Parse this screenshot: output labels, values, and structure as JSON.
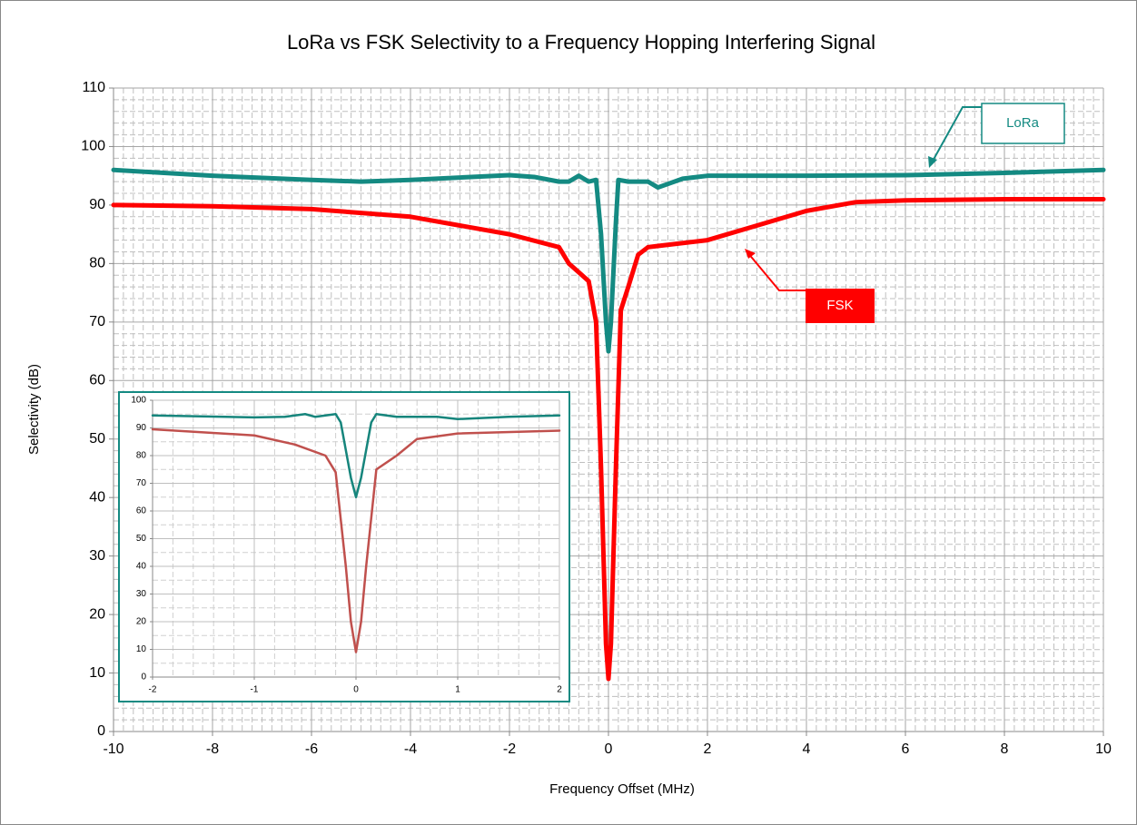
{
  "chart_data": [
    {
      "type": "line",
      "title": "LoRa vs FSK Selectivity to a Frequency Hopping Interfering Signal",
      "x_label": "Frequency Offset (MHz)",
      "y_label": "Selectivity (dB)",
      "xlim": [
        -10,
        10
      ],
      "xticks": [
        -10,
        -8,
        -6,
        -4,
        -2,
        0,
        2,
        4,
        6,
        8,
        10
      ],
      "ylim": [
        0,
        110
      ],
      "yticks": [
        0,
        10,
        20,
        30,
        40,
        50,
        60,
        70,
        80,
        90,
        100,
        110
      ],
      "grid": true,
      "minor_grid": true,
      "annotations": [
        {
          "text": "LoRa"
        },
        {
          "text": "FSK"
        }
      ],
      "series": [
        {
          "name": "LoRa",
          "color": "#148a82",
          "width": 5,
          "x": [
            -10,
            -8,
            -6,
            -5,
            -4,
            -2,
            -1.5,
            -1,
            -0.8,
            -0.6,
            -0.5,
            -0.4,
            -0.25,
            -0.15,
            -0.05,
            0,
            0.05,
            0.15,
            0.2,
            0.4,
            0.8,
            1,
            1.5,
            2,
            4,
            6,
            8,
            10
          ],
          "values": [
            96,
            95,
            94.3,
            94,
            94.3,
            95.1,
            94.8,
            94,
            94,
            95,
            94.5,
            94,
            94.3,
            85,
            70,
            65,
            70,
            87,
            94.3,
            94,
            94,
            93,
            94.5,
            95,
            95,
            95.1,
            95.5,
            96
          ]
        },
        {
          "name": "FSK",
          "color": "#ff0000",
          "width": 5,
          "x": [
            -10,
            -8,
            -6,
            -4,
            -2,
            -1,
            -0.8,
            -0.6,
            -0.4,
            -0.25,
            -0.15,
            -0.05,
            0,
            0.05,
            0.15,
            0.25,
            0.4,
            0.6,
            0.8,
            1,
            2,
            3,
            4,
            5,
            6,
            8,
            10
          ],
          "values": [
            90,
            89.8,
            89.3,
            88,
            85,
            82.8,
            80,
            78.5,
            77,
            70,
            45,
            15,
            9,
            15,
            45,
            72,
            76,
            81.5,
            82.8,
            83,
            84,
            86.5,
            89,
            90.5,
            90.8,
            91,
            91
          ]
        }
      ]
    },
    {
      "type": "line",
      "xlim": [
        -2,
        2
      ],
      "xticks": [
        -2,
        -1,
        0,
        1,
        2
      ],
      "ylim": [
        0,
        100
      ],
      "yticks": [
        0,
        10,
        20,
        30,
        40,
        50,
        60,
        70,
        80,
        90,
        100
      ],
      "grid": true,
      "minor_grid": true,
      "series": [
        {
          "color": "#16857c",
          "width": 2.5,
          "x": [
            -2,
            -1,
            -0.7,
            -0.5,
            -0.4,
            -0.2,
            -0.15,
            -0.05,
            0,
            0.05,
            0.15,
            0.2,
            0.4,
            0.8,
            1,
            1.5,
            2
          ],
          "values": [
            94.5,
            93.8,
            94,
            95,
            94,
            95,
            92,
            72,
            65,
            72,
            92,
            95,
            94,
            94,
            93.2,
            94,
            94.5
          ]
        },
        {
          "color": "#c0504d",
          "width": 2.5,
          "x": [
            -2,
            -1,
            -0.6,
            -0.3,
            -0.2,
            -0.1,
            -0.05,
            0,
            0.05,
            0.1,
            0.2,
            0.4,
            0.6,
            1,
            2
          ],
          "values": [
            89.5,
            87.3,
            84,
            80,
            74,
            40,
            20,
            9,
            20,
            40,
            75,
            80,
            86,
            88,
            89
          ]
        }
      ]
    }
  ]
}
